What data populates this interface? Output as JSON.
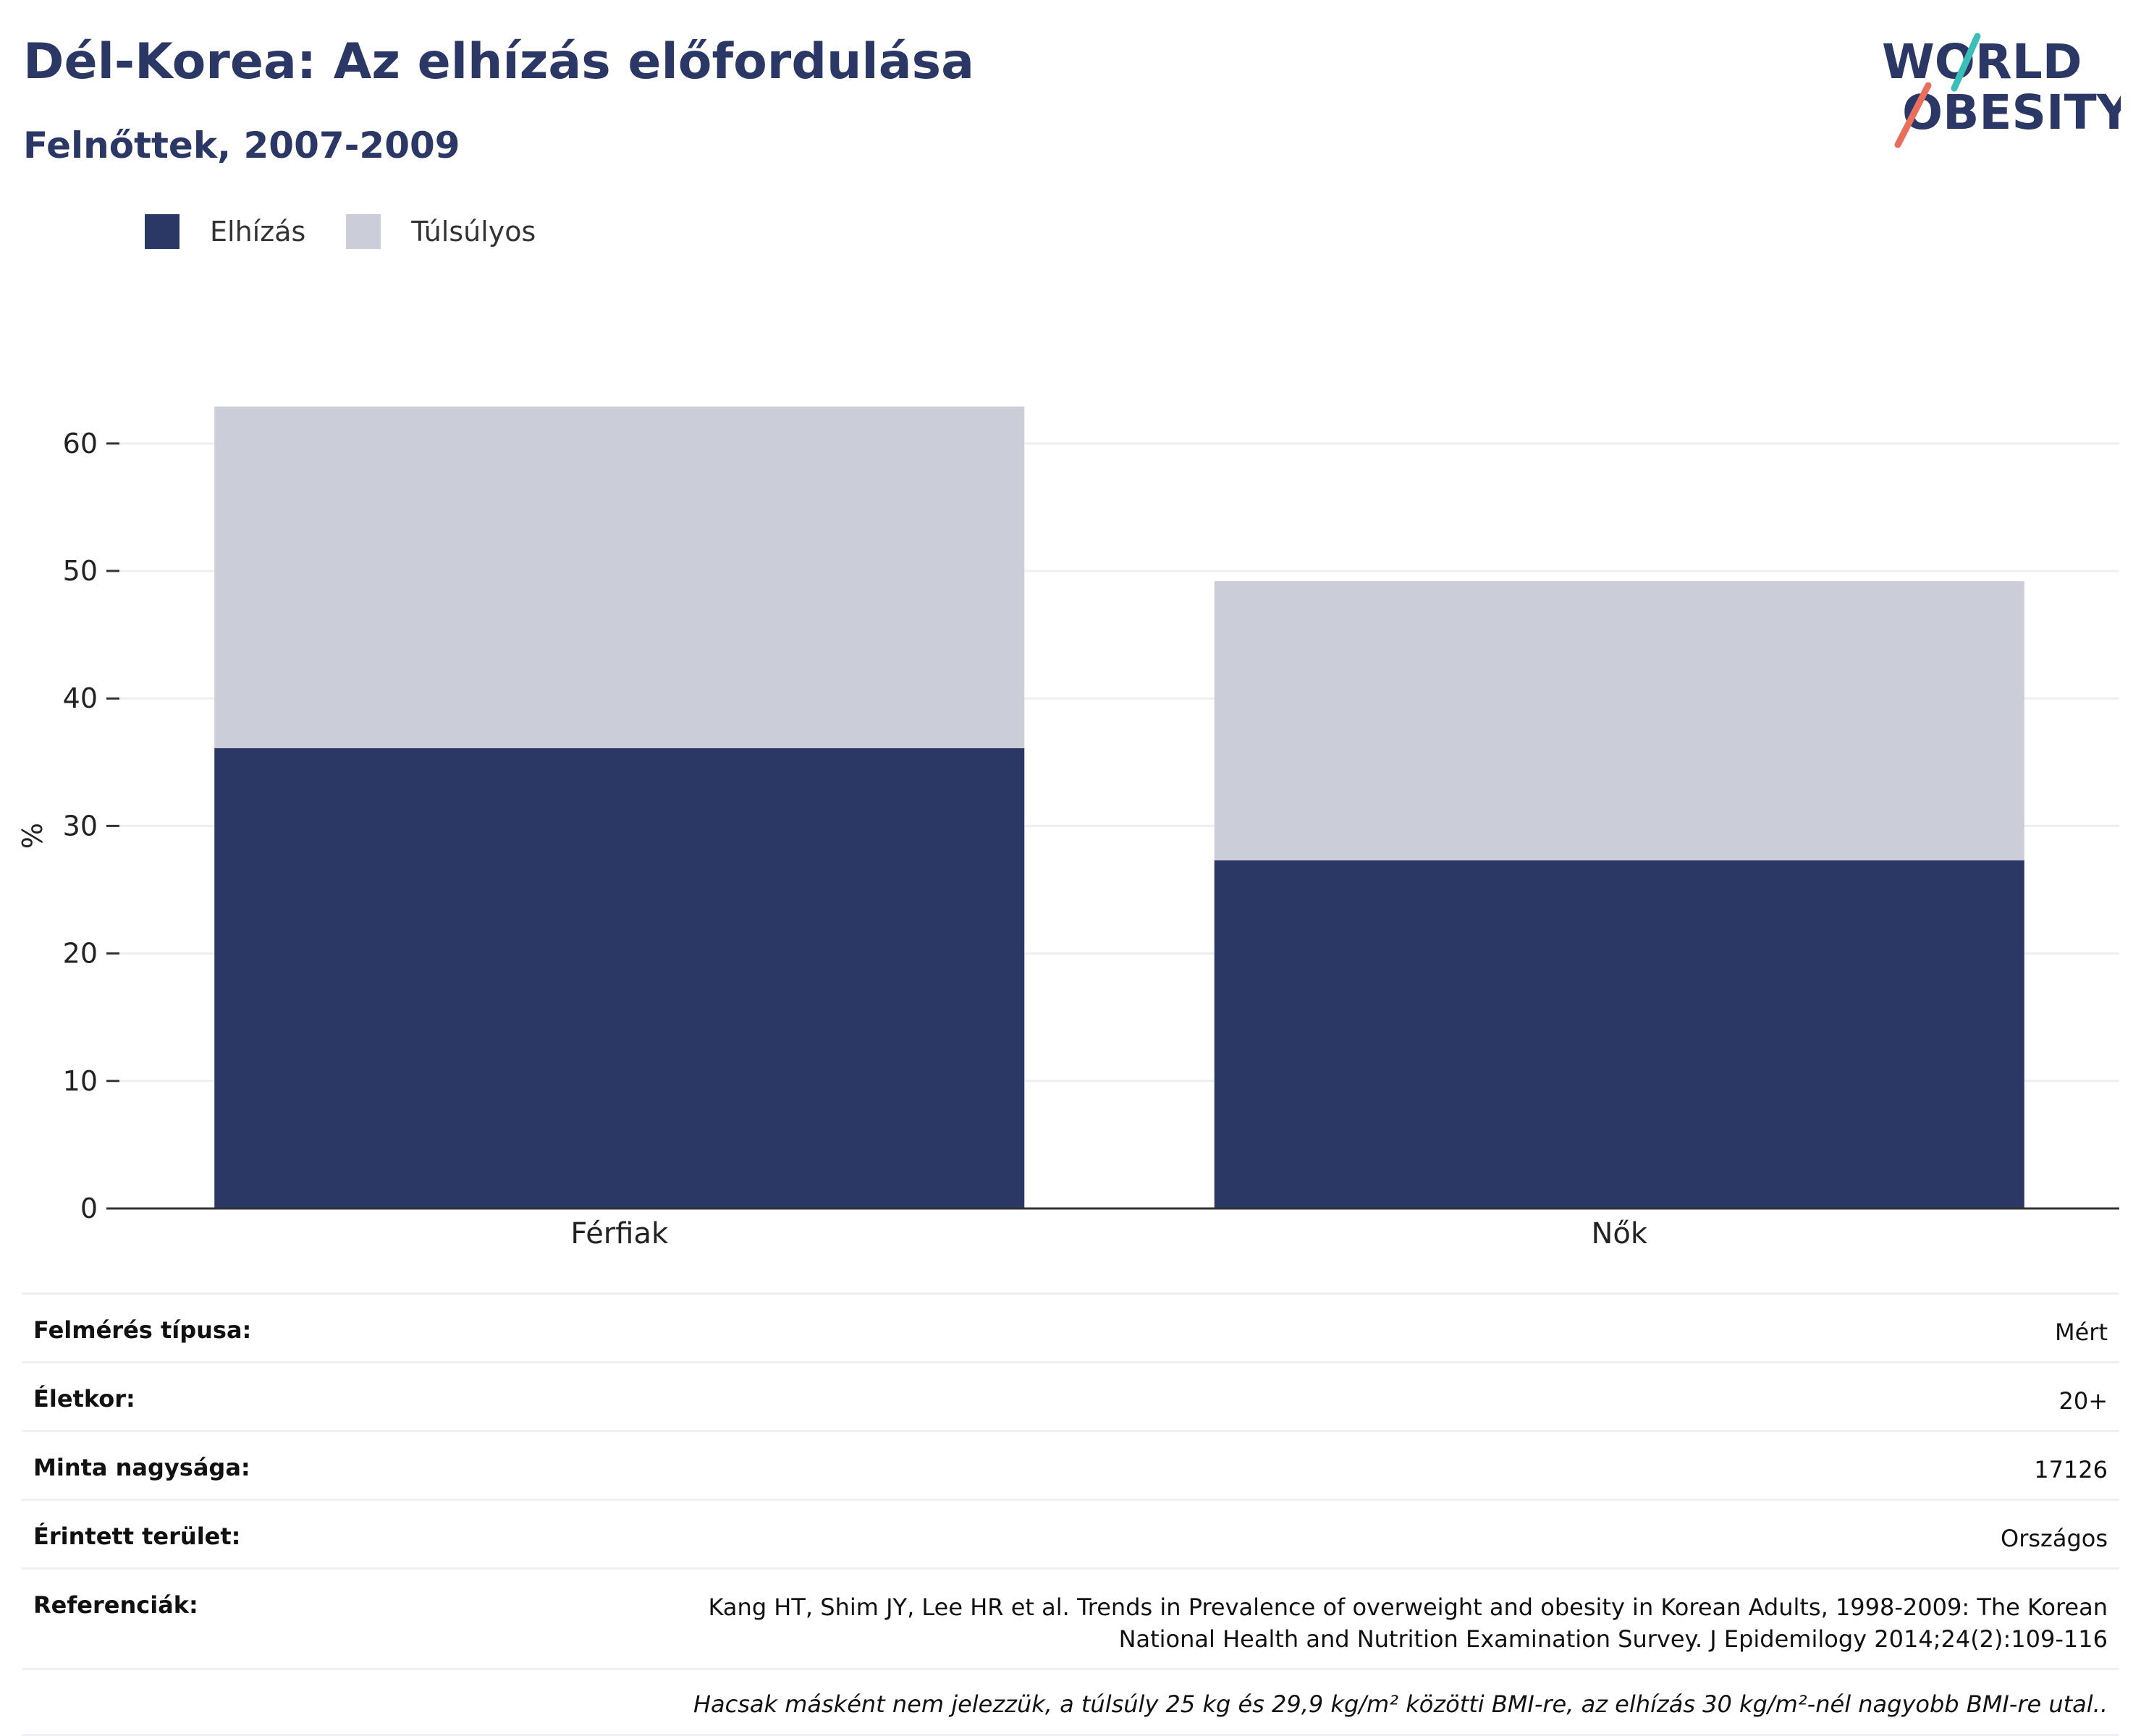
{
  "header": {
    "title": "Dél-Korea: Az elhízás előfordulása",
    "subtitle": "Felnőttek, 2007-2009"
  },
  "logo": {
    "line1": "WORLD",
    "line2": "OBESITY",
    "icon": "world-obesity-logo"
  },
  "colors": {
    "obesity": "#2b3764",
    "overweight": "#cbcdd8",
    "text": "#2b3764",
    "logo_teal": "#3bbdb8",
    "logo_coral": "#e86e5e"
  },
  "chart_data": {
    "type": "bar",
    "stacked": true,
    "categories": [
      "Férfiak",
      "Nők"
    ],
    "series": [
      {
        "name": "Elhízás",
        "values": [
          36.1,
          27.3
        ],
        "color": "#2b3764"
      },
      {
        "name": "Túlsúlyos",
        "values": [
          26.8,
          21.9
        ],
        "color": "#cbcdd8"
      }
    ],
    "ylabel": "%",
    "ylim": [
      0,
      63
    ],
    "yticks": [
      0,
      10,
      20,
      30,
      40,
      50,
      60
    ],
    "grid": true,
    "legend": "top-left"
  },
  "meta": {
    "rows": [
      {
        "label": "Felmérés típusa:",
        "value": "Mért"
      },
      {
        "label": "Életkor:",
        "value": "20+"
      },
      {
        "label": "Minta nagysága:",
        "value": "17126"
      },
      {
        "label": "Érintett terület:",
        "value": "Országos"
      },
      {
        "label": "Referenciák:",
        "value": "Kang HT, Shim JY, Lee HR et al. Trends in Prevalence of overweight and obesity in Korean Adults, 1998-2009: The Korean National Health and Nutrition Examination Survey. J Epidemilogy 2014;24(2):109-116"
      }
    ],
    "note": "Hacsak másként nem jelezzük, a túlsúly 25 kg és 29,9 kg/m² közötti BMI-re, az elhízás 30 kg/m²-nél nagyobb BMI-re utal.."
  }
}
